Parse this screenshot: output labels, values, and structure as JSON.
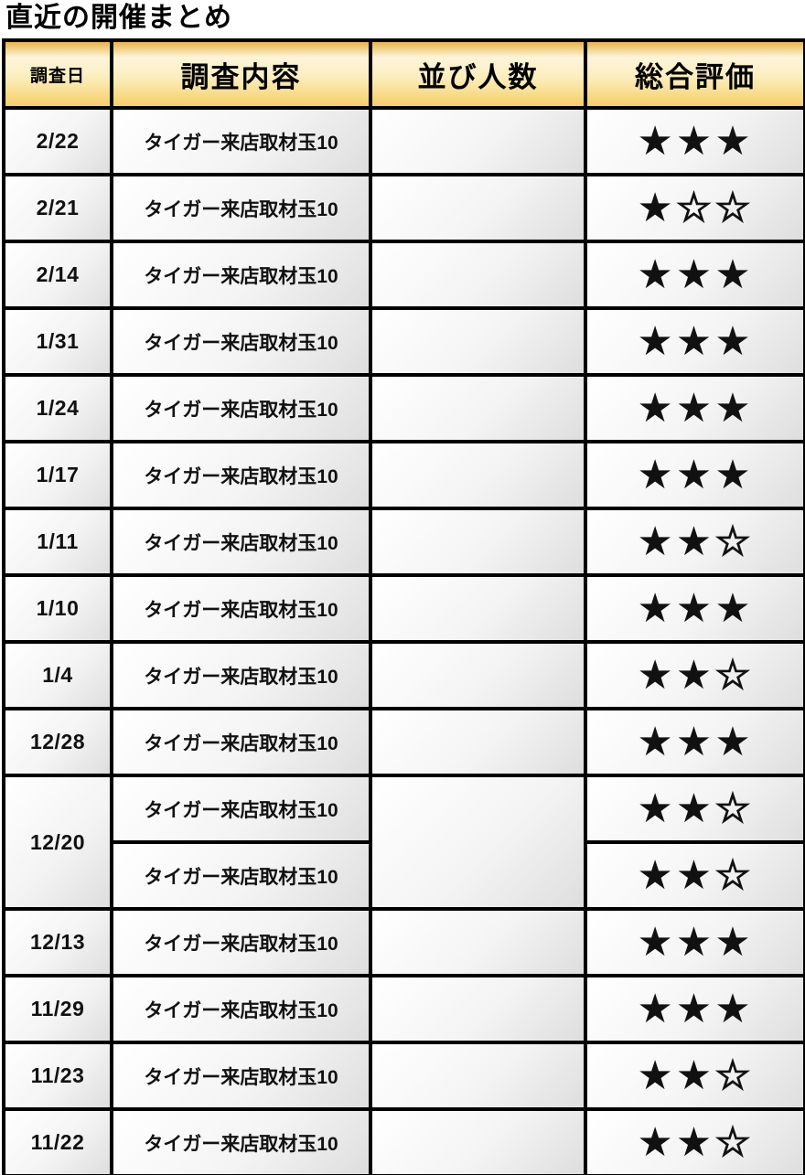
{
  "page_title": "直近の開催まとめ",
  "table": {
    "columns": [
      {
        "label": "調査日"
      },
      {
        "label": "調査内容"
      },
      {
        "label": "並び人数"
      },
      {
        "label": "総合評価"
      }
    ],
    "star_symbols": {
      "filled": "★",
      "empty": "☆"
    },
    "max_stars": 3,
    "rows": [
      {
        "date": "2/22",
        "queue_count": "",
        "entries": [
          {
            "content": "タイガー来店取材玉10",
            "stars_filled": 3
          }
        ]
      },
      {
        "date": "2/21",
        "queue_count": "",
        "entries": [
          {
            "content": "タイガー来店取材玉10",
            "stars_filled": 1
          }
        ]
      },
      {
        "date": "2/14",
        "queue_count": "",
        "entries": [
          {
            "content": "タイガー来店取材玉10",
            "stars_filled": 3
          }
        ]
      },
      {
        "date": "1/31",
        "queue_count": "",
        "entries": [
          {
            "content": "タイガー来店取材玉10",
            "stars_filled": 3
          }
        ]
      },
      {
        "date": "1/24",
        "queue_count": "",
        "entries": [
          {
            "content": "タイガー来店取材玉10",
            "stars_filled": 3
          }
        ]
      },
      {
        "date": "1/17",
        "queue_count": "",
        "entries": [
          {
            "content": "タイガー来店取材玉10",
            "stars_filled": 3
          }
        ]
      },
      {
        "date": "1/11",
        "queue_count": "",
        "entries": [
          {
            "content": "タイガー来店取材玉10",
            "stars_filled": 2
          }
        ]
      },
      {
        "date": "1/10",
        "queue_count": "",
        "entries": [
          {
            "content": "タイガー来店取材玉10",
            "stars_filled": 3
          }
        ]
      },
      {
        "date": "1/4",
        "queue_count": "",
        "entries": [
          {
            "content": "タイガー来店取材玉10",
            "stars_filled": 2
          }
        ]
      },
      {
        "date": "12/28",
        "queue_count": "",
        "entries": [
          {
            "content": "タイガー来店取材玉10",
            "stars_filled": 3
          }
        ]
      },
      {
        "date": "12/20",
        "queue_count": "",
        "entries": [
          {
            "content": "タイガー来店取材玉10",
            "stars_filled": 2
          },
          {
            "content": "タイガー来店取材玉10",
            "stars_filled": 2
          }
        ]
      },
      {
        "date": "12/13",
        "queue_count": "",
        "entries": [
          {
            "content": "タイガー来店取材玉10",
            "stars_filled": 3
          }
        ]
      },
      {
        "date": "11/29",
        "queue_count": "",
        "entries": [
          {
            "content": "タイガー来店取材玉10",
            "stars_filled": 3
          }
        ]
      },
      {
        "date": "11/23",
        "queue_count": "",
        "entries": [
          {
            "content": "タイガー来店取材玉10",
            "stars_filled": 2
          }
        ]
      },
      {
        "date": "11/22",
        "queue_count": "",
        "entries": [
          {
            "content": "タイガー来店取材玉10",
            "stars_filled": 2
          }
        ]
      }
    ],
    "colors": {
      "border": "#000000",
      "header_gold_top": "#e7b54a",
      "header_gold_light": "#fdf5da",
      "header_gold_bottom": "#f6cf67",
      "cell_gradient_start": "#ffffff",
      "cell_gradient_end": "#dedede",
      "text": "#111111"
    }
  }
}
